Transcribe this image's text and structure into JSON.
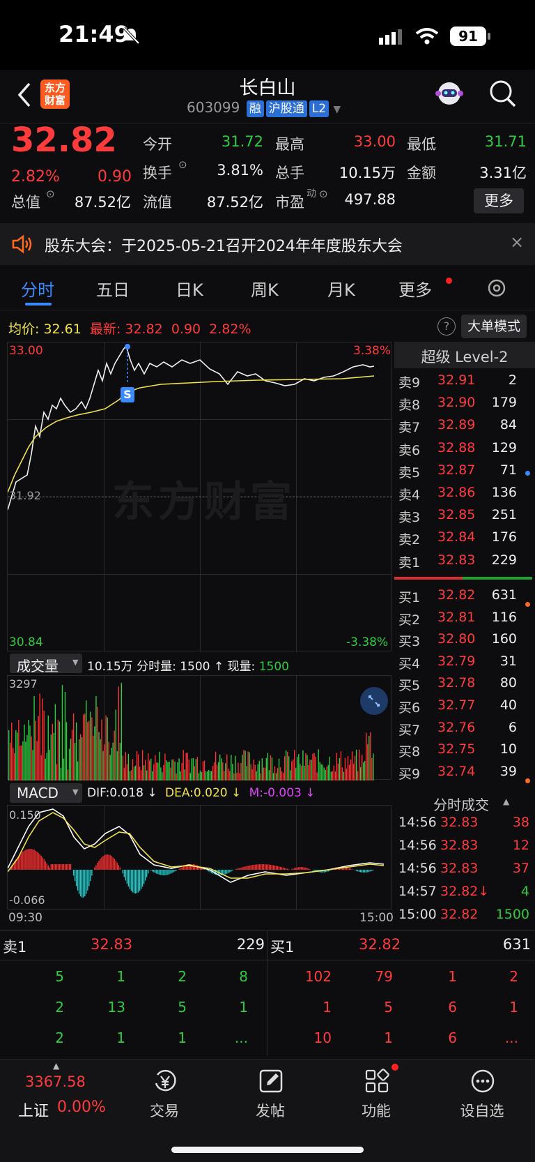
{
  "status_bar": {
    "time": "21:49",
    "battery": "91"
  },
  "header": {
    "title": "长白山",
    "code": "603099",
    "tags": [
      "融",
      "沪股通",
      "L2"
    ],
    "logo_text": "东方\n财富"
  },
  "quote": {
    "price": "32.82",
    "change_pct": "2.82%",
    "change": "0.90",
    "open_label": "今开",
    "open": "31.72",
    "high_label": "最高",
    "high": "33.00",
    "low_label": "最低",
    "low": "31.71",
    "turnover_label": "换手",
    "turnover": "3.81%",
    "volume_label": "总手",
    "volume": "10.15万",
    "amount_label": "金额",
    "amount": "3.31亿",
    "mcap_label": "总值",
    "mcap": "87.52亿",
    "float_label": "流值",
    "float_mcap": "87.52亿",
    "pe_label": "市盈",
    "pe_sup": "动",
    "pe": "497.88",
    "more_button": "更多"
  },
  "notice": {
    "text": "股东大会：于2025-05-21召开2024年年度股东大会"
  },
  "tabs": [
    "分时",
    "五日",
    "日K",
    "周K",
    "月K",
    "更多"
  ],
  "chart_header": {
    "avg_label": "均价:",
    "avg": "32.61",
    "latest_label": "最新:",
    "latest": "32.82",
    "latest_change": "0.90",
    "latest_pct": "2.82%",
    "big_order_button": "大单模式"
  },
  "price_axis": {
    "top": "33.00",
    "bottom": "30.84",
    "top_pct": "3.38%",
    "bottom_pct": "-3.38%",
    "mid": "31.92"
  },
  "sell_marker": "S",
  "volume_header": {
    "selector": "成交量",
    "total": "10.15万",
    "minute_label": "分时量:",
    "minute": "1500",
    "arrow": "↑",
    "now_label": "现量:",
    "now": "1500",
    "max": "3297"
  },
  "macd_header": {
    "selector": "MACD",
    "dif": "DIF:0.018 ↓",
    "dea": "DEA:0.020 ↓",
    "m": "M:-0.003 ↓",
    "max": "0.150",
    "min": "-0.066"
  },
  "time_axis": {
    "start": "09:30",
    "end": "15:00"
  },
  "watermark": "东方财富",
  "level2": {
    "title": "超级 Level-2",
    "sells": [
      {
        "label": "卖9",
        "price": "32.91",
        "vol": "2"
      },
      {
        "label": "卖8",
        "price": "32.90",
        "vol": "179"
      },
      {
        "label": "卖7",
        "price": "32.89",
        "vol": "84"
      },
      {
        "label": "卖6",
        "price": "32.88",
        "vol": "129"
      },
      {
        "label": "卖5",
        "price": "32.87",
        "vol": "71"
      },
      {
        "label": "卖4",
        "price": "32.86",
        "vol": "136"
      },
      {
        "label": "卖3",
        "price": "32.85",
        "vol": "251"
      },
      {
        "label": "卖2",
        "price": "32.84",
        "vol": "176"
      },
      {
        "label": "卖1",
        "price": "32.83",
        "vol": "229"
      }
    ],
    "buys": [
      {
        "label": "买1",
        "price": "32.82",
        "vol": "631"
      },
      {
        "label": "买2",
        "price": "32.81",
        "vol": "116"
      },
      {
        "label": "买3",
        "price": "32.80",
        "vol": "160"
      },
      {
        "label": "买4",
        "price": "32.79",
        "vol": "31"
      },
      {
        "label": "买5",
        "price": "32.78",
        "vol": "80"
      },
      {
        "label": "买6",
        "price": "32.77",
        "vol": "40"
      },
      {
        "label": "买7",
        "price": "32.76",
        "vol": "6"
      },
      {
        "label": "买8",
        "price": "32.75",
        "vol": "10"
      },
      {
        "label": "买9",
        "price": "32.74",
        "vol": "39"
      }
    ]
  },
  "trades": {
    "title": "分时成交",
    "rows": [
      {
        "time": "14:56",
        "price": "32.83",
        "vol": "38",
        "dir": "up"
      },
      {
        "time": "14:56",
        "price": "32.83",
        "vol": "12",
        "dir": "up"
      },
      {
        "time": "14:56",
        "price": "32.83",
        "vol": "37",
        "dir": "up"
      },
      {
        "time": "14:57",
        "price": "32.82↓",
        "vol": "4",
        "dir": "down"
      },
      {
        "time": "15:00",
        "price": "32.82",
        "vol": "1500",
        "dir": "down"
      }
    ]
  },
  "queue": {
    "sell_label": "卖1",
    "sell_price": "32.83",
    "sell_vol": "229",
    "buy_label": "买1",
    "buy_price": "32.82",
    "buy_vol": "631",
    "sell_rows": [
      [
        "5",
        "1",
        "2",
        "8"
      ],
      [
        "2",
        "13",
        "5",
        "1"
      ],
      [
        "2",
        "1",
        "1",
        "..."
      ]
    ],
    "buy_rows": [
      [
        "102",
        "79",
        "1",
        "2"
      ],
      [
        "1",
        "5",
        "6",
        "1"
      ],
      [
        "10",
        "1",
        "6",
        "..."
      ]
    ]
  },
  "bottom_nav": {
    "index_value": "3367.58",
    "index_name": "上证",
    "index_pct": "0.00%",
    "items": [
      "交易",
      "发帖",
      "功能",
      "设自选"
    ]
  },
  "colors": {
    "up": "#ff3b3b",
    "down": "#2ecc40",
    "accent": "#3a8bff",
    "avg_line": "#f0e24a"
  }
}
